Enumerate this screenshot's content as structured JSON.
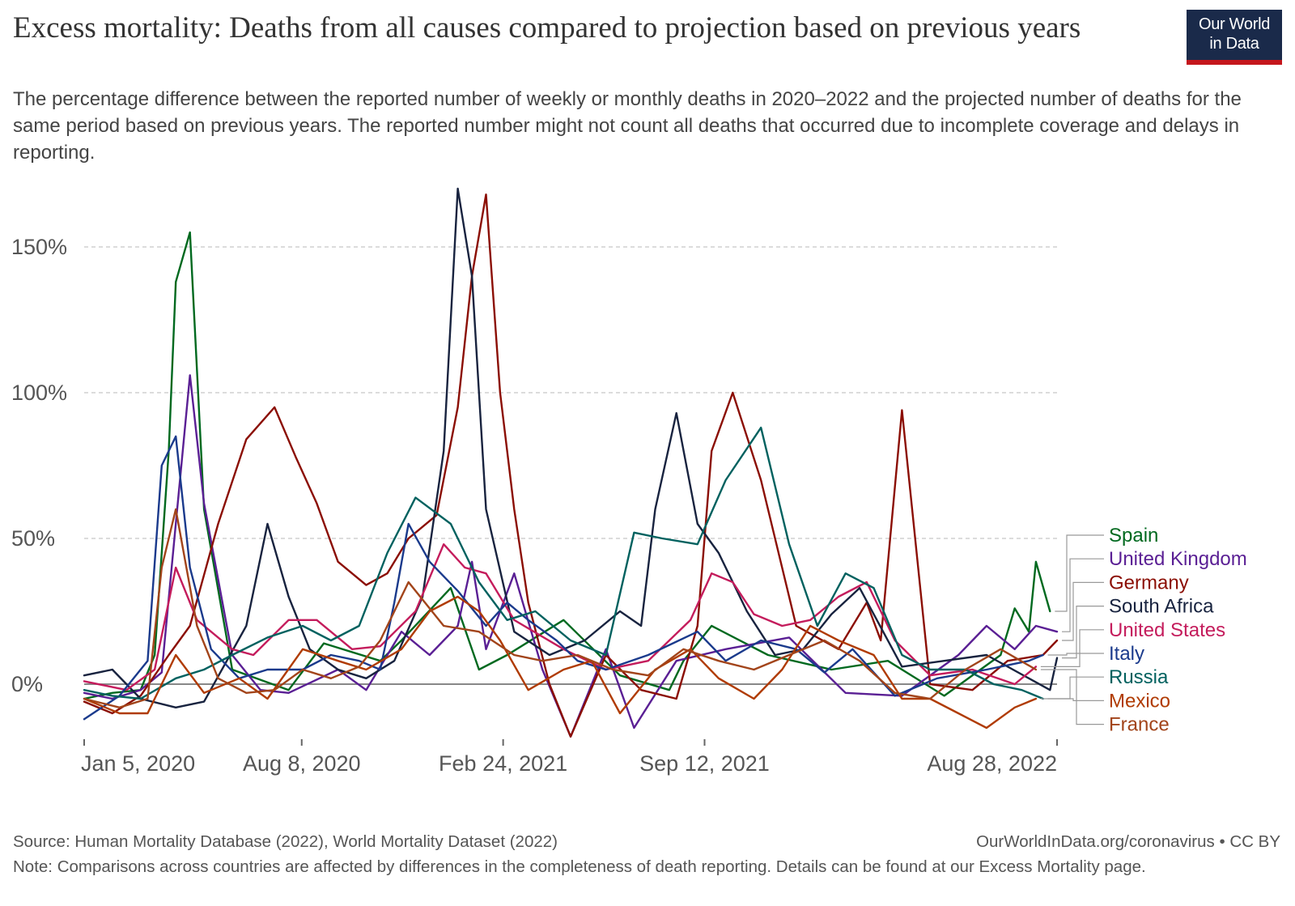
{
  "header": {
    "title": "Excess mortality: Deaths from all causes compared to projection based on previous years",
    "subtitle": "The percentage difference between the reported number of weekly or monthly deaths in 2020–2022 and the projected number of deaths for the same period based on previous years. The reported number might not count all deaths that occurred due to incomplete coverage and delays in reporting.",
    "logo_line1": "Our World",
    "logo_line2": "in Data"
  },
  "footer": {
    "source": "Source: Human Mortality Database (2022), World Mortality Dataset (2022)",
    "attribution": "OurWorldInData.org/coronavirus • CC BY",
    "note": "Note: Comparisons across countries are affected by differences in the completeness of death reporting. Details can be found at our Excess Mortality page."
  },
  "chart_data": {
    "type": "line",
    "x_unit": "date",
    "x_ticks": [
      {
        "label": "Jan 5, 2020",
        "date": "2020-01-05"
      },
      {
        "label": "Aug 8, 2020",
        "date": "2020-08-08"
      },
      {
        "label": "Feb 24, 2021",
        "date": "2021-02-24"
      },
      {
        "label": "Sep 12, 2021",
        "date": "2021-09-12"
      },
      {
        "label": "Aug 28, 2022",
        "date": "2022-08-28"
      }
    ],
    "xlim": [
      "2020-01-05",
      "2022-08-28"
    ],
    "y_ticks": [
      {
        "label": "0%",
        "value": 0
      },
      {
        "label": "50%",
        "value": 50
      },
      {
        "label": "100%",
        "value": 100
      },
      {
        "label": "150%",
        "value": 150
      }
    ],
    "ylim": [
      -20,
      170
    ],
    "grid": "horizontal dashed",
    "legend": "right, labels beside line ends",
    "series": [
      {
        "name": "Spain",
        "color": "#00691f",
        "x": [
          "2020-01-05",
          "2020-02-02",
          "2020-03-01",
          "2020-03-15",
          "2020-03-29",
          "2020-04-05",
          "2020-04-19",
          "2020-05-03",
          "2020-05-31",
          "2020-07-26",
          "2020-08-30",
          "2020-10-25",
          "2020-11-15",
          "2021-01-03",
          "2021-01-31",
          "2021-02-28",
          "2021-04-25",
          "2021-06-20",
          "2021-08-08",
          "2021-08-22",
          "2021-09-19",
          "2021-11-14",
          "2022-01-16",
          "2022-03-13",
          "2022-05-08",
          "2022-07-03",
          "2022-07-17",
          "2022-07-31",
          "2022-08-07",
          "2022-08-21"
        ],
        "y": [
          -5,
          -3,
          -2,
          10,
          80,
          138,
          155,
          60,
          5,
          -2,
          14,
          8,
          15,
          33,
          5,
          10,
          22,
          3,
          -2,
          8,
          20,
          10,
          5,
          8,
          -4,
          10,
          26,
          18,
          42,
          25
        ]
      },
      {
        "name": "United Kingdom",
        "color": "#5a1f94",
        "x": [
          "2020-01-05",
          "2020-02-02",
          "2020-03-01",
          "2020-03-22",
          "2020-04-05",
          "2020-04-19",
          "2020-05-03",
          "2020-05-31",
          "2020-06-28",
          "2020-07-26",
          "2020-09-13",
          "2020-10-11",
          "2020-11-15",
          "2020-12-13",
          "2021-01-10",
          "2021-01-24",
          "2021-02-07",
          "2021-03-07",
          "2021-04-04",
          "2021-05-02",
          "2021-06-06",
          "2021-07-04",
          "2021-08-15",
          "2021-10-03",
          "2021-12-05",
          "2022-01-30",
          "2022-03-27",
          "2022-05-22",
          "2022-06-19",
          "2022-07-17",
          "2022-08-07",
          "2022-08-28"
        ],
        "y": [
          -3,
          -5,
          -2,
          4,
          55,
          106,
          62,
          10,
          -2,
          -3,
          5,
          -2,
          18,
          10,
          20,
          42,
          12,
          38,
          5,
          -18,
          12,
          -15,
          8,
          12,
          16,
          -3,
          -4,
          10,
          20,
          12,
          20,
          18
        ]
      },
      {
        "name": "Germany",
        "color": "#8b0e04",
        "x": [
          "2020-01-05",
          "2020-02-02",
          "2020-03-01",
          "2020-03-29",
          "2020-04-19",
          "2020-05-17",
          "2020-06-14",
          "2020-07-12",
          "2020-08-02",
          "2020-08-23",
          "2020-09-13",
          "2020-10-11",
          "2020-11-01",
          "2020-11-22",
          "2020-12-20",
          "2021-01-10",
          "2021-01-24",
          "2021-02-07",
          "2021-02-21",
          "2021-03-07",
          "2021-03-21",
          "2021-04-11",
          "2021-05-02",
          "2021-06-06",
          "2021-07-11",
          "2021-08-15",
          "2021-09-05",
          "2021-09-19",
          "2021-10-10",
          "2021-11-07",
          "2021-12-12",
          "2022-01-23",
          "2022-02-20",
          "2022-03-06",
          "2022-03-27",
          "2022-04-24",
          "2022-06-05",
          "2022-07-10",
          "2022-08-14",
          "2022-08-28"
        ],
        "y": [
          -6,
          -10,
          -4,
          10,
          20,
          55,
          84,
          95,
          78,
          62,
          42,
          34,
          38,
          50,
          58,
          95,
          140,
          168,
          100,
          60,
          28,
          0,
          -18,
          10,
          -2,
          -5,
          20,
          80,
          100,
          70,
          20,
          12,
          28,
          15,
          94,
          0,
          -2,
          8,
          10,
          15
        ]
      },
      {
        "name": "South Africa",
        "color": "#18233f",
        "x": [
          "2020-01-05",
          "2020-02-02",
          "2020-03-01",
          "2020-04-05",
          "2020-05-03",
          "2020-06-14",
          "2020-07-05",
          "2020-07-26",
          "2020-08-16",
          "2020-09-13",
          "2020-10-11",
          "2020-11-08",
          "2020-12-06",
          "2020-12-27",
          "2021-01-10",
          "2021-01-24",
          "2021-02-07",
          "2021-03-07",
          "2021-04-11",
          "2021-05-16",
          "2021-06-20",
          "2021-07-11",
          "2021-07-25",
          "2021-08-15",
          "2021-09-05",
          "2021-09-26",
          "2021-10-24",
          "2021-11-21",
          "2021-12-19",
          "2022-01-16",
          "2022-02-13",
          "2022-03-27",
          "2022-05-08",
          "2022-06-19",
          "2022-07-31",
          "2022-08-21",
          "2022-08-28"
        ],
        "y": [
          3,
          5,
          -5,
          -8,
          -6,
          20,
          55,
          30,
          12,
          5,
          2,
          8,
          30,
          80,
          170,
          140,
          60,
          18,
          10,
          15,
          25,
          20,
          60,
          93,
          55,
          45,
          25,
          10,
          12,
          24,
          33,
          6,
          8,
          10,
          2,
          -2,
          9
        ]
      },
      {
        "name": "United States",
        "color": "#c41c5c",
        "x": [
          "2020-01-05",
          "2020-02-16",
          "2020-03-15",
          "2020-04-05",
          "2020-04-26",
          "2020-05-31",
          "2020-06-21",
          "2020-07-26",
          "2020-08-23",
          "2020-09-27",
          "2020-10-25",
          "2020-11-29",
          "2020-12-27",
          "2021-01-17",
          "2021-02-07",
          "2021-03-07",
          "2021-04-25",
          "2021-06-06",
          "2021-07-18",
          "2021-08-29",
          "2021-09-19",
          "2021-10-10",
          "2021-10-31",
          "2021-11-28",
          "2021-12-26",
          "2022-01-23",
          "2022-02-20",
          "2022-03-20",
          "2022-04-24",
          "2022-06-05",
          "2022-07-17",
          "2022-08-07"
        ],
        "y": [
          1,
          -2,
          5,
          40,
          22,
          12,
          10,
          22,
          22,
          12,
          13,
          25,
          48,
          40,
          38,
          22,
          12,
          5,
          8,
          22,
          38,
          35,
          24,
          20,
          22,
          30,
          35,
          15,
          3,
          5,
          0,
          6
        ]
      },
      {
        "name": "Italy",
        "color": "#1a3a8c",
        "x": [
          "2020-01-05",
          "2020-02-09",
          "2020-03-08",
          "2020-03-22",
          "2020-04-05",
          "2020-04-19",
          "2020-05-10",
          "2020-06-07",
          "2020-07-05",
          "2020-08-09",
          "2020-09-06",
          "2020-10-04",
          "2020-10-25",
          "2020-11-08",
          "2020-11-22",
          "2020-12-13",
          "2021-01-10",
          "2021-02-07",
          "2021-02-28",
          "2021-03-21",
          "2021-04-18",
          "2021-05-09",
          "2021-06-06",
          "2021-07-18",
          "2021-09-05",
          "2021-10-03",
          "2021-11-07",
          "2021-12-12",
          "2022-01-09",
          "2022-02-06",
          "2022-03-20",
          "2022-05-01",
          "2022-06-19",
          "2022-07-31",
          "2022-08-14"
        ],
        "y": [
          -12,
          -4,
          8,
          75,
          85,
          40,
          12,
          2,
          5,
          5,
          10,
          8,
          5,
          28,
          55,
          42,
          32,
          20,
          28,
          22,
          15,
          8,
          5,
          10,
          18,
          8,
          15,
          12,
          4,
          12,
          -4,
          2,
          5,
          8,
          10
        ]
      },
      {
        "name": "Russia",
        "color": "#00615f",
        "x": [
          "2020-01-05",
          "2020-02-02",
          "2020-03-01",
          "2020-04-05",
          "2020-05-03",
          "2020-05-31",
          "2020-07-05",
          "2020-08-09",
          "2020-09-06",
          "2020-10-04",
          "2020-11-01",
          "2020-11-29",
          "2021-01-03",
          "2021-01-31",
          "2021-02-28",
          "2021-03-28",
          "2021-05-02",
          "2021-06-06",
          "2021-07-04",
          "2021-08-01",
          "2021-09-05",
          "2021-10-03",
          "2021-11-07",
          "2021-12-05",
          "2022-01-02",
          "2022-01-30",
          "2022-02-27",
          "2022-03-27",
          "2022-04-24",
          "2022-05-29",
          "2022-06-26",
          "2022-07-24",
          "2022-08-14"
        ],
        "y": [
          -2,
          -4,
          -5,
          2,
          5,
          10,
          16,
          20,
          15,
          20,
          45,
          64,
          55,
          35,
          22,
          25,
          15,
          10,
          52,
          50,
          48,
          70,
          88,
          48,
          20,
          38,
          33,
          10,
          5,
          5,
          0,
          -2,
          -5
        ]
      },
      {
        "name": "Mexico",
        "color": "#b03b02",
        "x": [
          "2020-01-05",
          "2020-02-09",
          "2020-03-08",
          "2020-04-05",
          "2020-05-03",
          "2020-06-07",
          "2020-07-05",
          "2020-08-09",
          "2020-09-13",
          "2020-10-11",
          "2020-11-15",
          "2020-12-13",
          "2021-01-10",
          "2021-01-31",
          "2021-02-21",
          "2021-03-21",
          "2021-04-25",
          "2021-05-23",
          "2021-06-20",
          "2021-07-25",
          "2021-08-29",
          "2021-09-26",
          "2021-10-31",
          "2021-11-28",
          "2021-12-26",
          "2022-01-23",
          "2022-02-27",
          "2022-03-27",
          "2022-04-24",
          "2022-05-22",
          "2022-06-19",
          "2022-07-17",
          "2022-08-07"
        ],
        "y": [
          -5,
          -10,
          -10,
          10,
          -3,
          2,
          -5,
          12,
          8,
          5,
          12,
          25,
          30,
          25,
          15,
          -2,
          5,
          8,
          -10,
          5,
          12,
          2,
          -5,
          5,
          20,
          15,
          10,
          -5,
          -5,
          -10,
          -15,
          -8,
          -5
        ]
      },
      {
        "name": "France",
        "color": "#a2441a",
        "x": [
          "2020-01-05",
          "2020-02-09",
          "2020-03-08",
          "2020-03-22",
          "2020-04-05",
          "2020-04-26",
          "2020-05-17",
          "2020-06-14",
          "2020-07-12",
          "2020-08-09",
          "2020-09-06",
          "2020-10-04",
          "2020-10-25",
          "2020-11-22",
          "2020-12-27",
          "2021-01-31",
          "2021-03-07",
          "2021-04-04",
          "2021-05-09",
          "2021-06-13",
          "2021-07-18",
          "2021-08-22",
          "2021-09-26",
          "2021-10-31",
          "2021-12-05",
          "2022-01-09",
          "2022-02-13",
          "2022-03-20",
          "2022-04-24",
          "2022-05-29",
          "2022-07-03",
          "2022-08-07"
        ],
        "y": [
          -5,
          -8,
          -5,
          40,
          60,
          20,
          2,
          -3,
          -2,
          5,
          2,
          6,
          15,
          35,
          20,
          18,
          10,
          8,
          10,
          5,
          3,
          12,
          8,
          5,
          10,
          15,
          8,
          -3,
          -5,
          5,
          12,
          5
        ]
      }
    ]
  }
}
